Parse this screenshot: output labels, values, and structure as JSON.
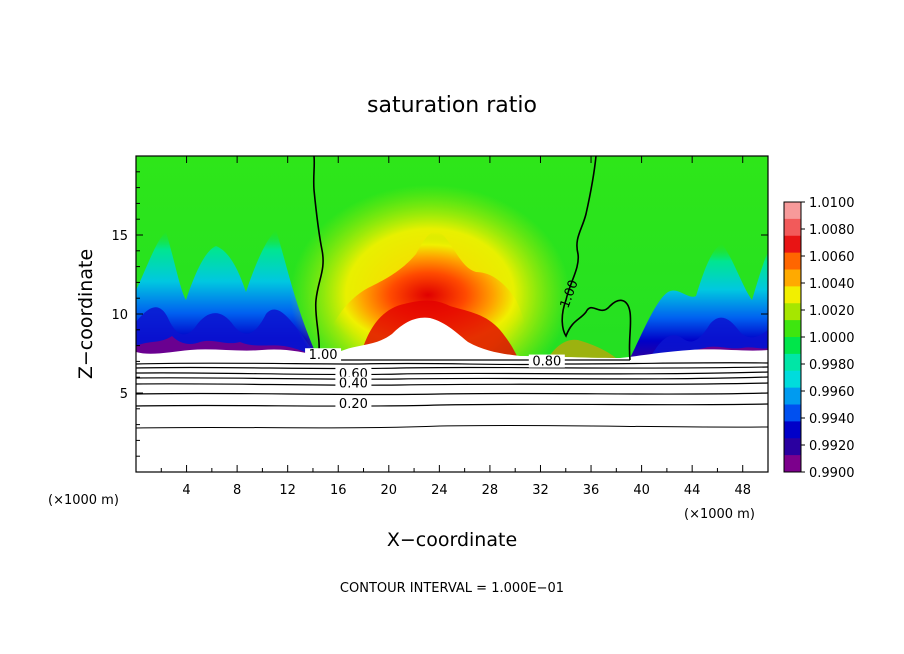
{
  "chart_data": {
    "type": "heatmap",
    "title": "saturation ratio",
    "xlabel": "X−coordinate",
    "ylabel": "Z−coordinate",
    "x_unit": "(×1000 m)",
    "z_unit": "(×1000 m)",
    "xlim": [
      0,
      50
    ],
    "ylim": [
      0,
      20
    ],
    "x_ticks": [
      4,
      8,
      12,
      16,
      20,
      24,
      28,
      32,
      36,
      40,
      44,
      48
    ],
    "y_ticks": [
      5,
      10,
      15
    ],
    "colorbar": {
      "levels": [
        "1.0100",
        "1.0080",
        "1.0060",
        "1.0040",
        "1.0020",
        "1.0000",
        "0.9980",
        "0.9960",
        "0.9940",
        "0.9920",
        "0.9900"
      ],
      "colors": [
        "#f79a9a",
        "#f25a5a",
        "#e81414",
        "#ff6600",
        "#ffaa00",
        "#f2ef00",
        "#a6e600",
        "#3ee60f",
        "#00e64a",
        "#00e6a6",
        "#00dcdc",
        "#009bf0",
        "#0050f0",
        "#0000c8",
        "#2a00a0",
        "#7c008c"
      ]
    },
    "contours": [
      {
        "label": "1.00",
        "x": 14.8,
        "z": 7.2
      },
      {
        "label": "1.00",
        "x": 34.5,
        "z": 11.2
      },
      {
        "label": "0.80",
        "x": 32.5,
        "z": 6.8
      },
      {
        "label": "0.60",
        "x": 17.2,
        "z": 6.0
      },
      {
        "label": "0.40",
        "x": 17.2,
        "z": 5.4
      },
      {
        "label": "0.20",
        "x": 17.2,
        "z": 4.1
      }
    ],
    "contour_levels": [
      0.2,
      0.4,
      0.6,
      0.8,
      1.0
    ],
    "cloud_base_z": 7.2
  },
  "footer": "CONTOUR INTERVAL = 1.000E−01"
}
